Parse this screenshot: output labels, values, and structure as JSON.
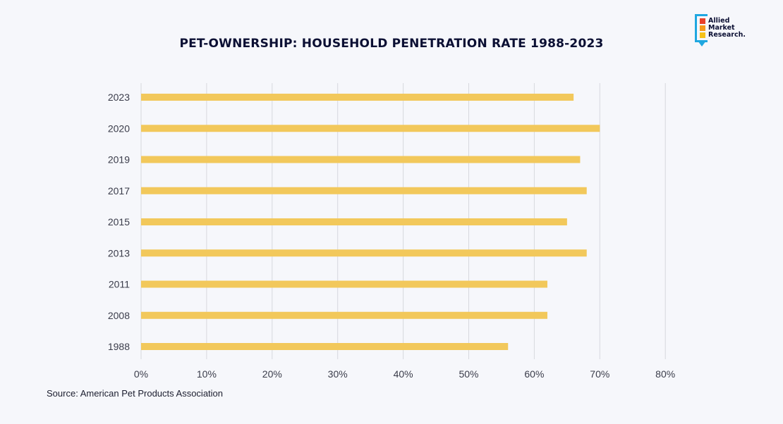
{
  "page": {
    "title": "PET-OWNERSHIP: HOUSEHOLD PENETRATION RATE 1988-2023",
    "source": "Source: American Pet Products Association",
    "logo": {
      "line1": "Allied",
      "line2": "Market",
      "line3": "Research.",
      "colors": [
        "#e8402a",
        "#f59a1b",
        "#f6c21a"
      ],
      "frame_color": "#1fa7e0"
    }
  },
  "chart_data": {
    "type": "bar",
    "orientation": "horizontal",
    "title": "PET-OWNERSHIP: HOUSEHOLD PENETRATION RATE 1988-2023",
    "categories": [
      "2023",
      "2020",
      "2019",
      "2017",
      "2015",
      "2013",
      "2011",
      "2008",
      "1988"
    ],
    "values": [
      66,
      70,
      67,
      68,
      65,
      68,
      62,
      62,
      56
    ],
    "xlim": [
      0,
      80
    ],
    "x_ticks": [
      "0%",
      "10%",
      "20%",
      "30%",
      "40%",
      "50%",
      "60%",
      "70%",
      "80%"
    ],
    "x_tick_values": [
      0,
      10,
      20,
      30,
      40,
      50,
      60,
      70,
      80
    ],
    "xlabel": "",
    "ylabel": "",
    "grid": "vertical",
    "bar_color": "#f2c85b",
    "grid_color": "#d7d8de"
  }
}
